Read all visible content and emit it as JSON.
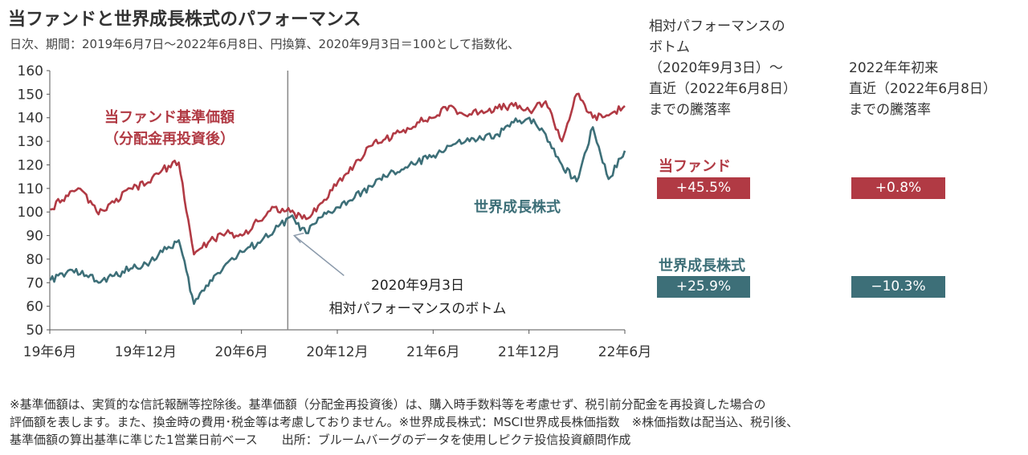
{
  "title": "当ファンドと世界成長株式のパフォーマンス",
  "subtitle": "日次、期間：2019年6月7日～2022年6月8日、円換算、2020年9月3日＝100として指数化、",
  "colors": {
    "fund": "#b13a44",
    "growth": "#3d6f78",
    "axis": "#555555"
  },
  "chart_data": {
    "type": "line",
    "ylim": [
      50,
      160
    ],
    "yticks": [
      "50",
      "60",
      "70",
      "80",
      "90",
      "100",
      "110",
      "120",
      "130",
      "140",
      "150",
      "160"
    ],
    "xticks": [
      "19年6月",
      "19年12月",
      "20年6月",
      "20年12月",
      "21年6月",
      "21年12月",
      "22年6月"
    ],
    "series": [
      {
        "name": "当ファンド基準価額（分配金再投資後）",
        "x": [
          "2019-06",
          "2019-07",
          "2019-08",
          "2019-09",
          "2019-10",
          "2019-11",
          "2019-12",
          "2020-01",
          "2020-02",
          "2020-03",
          "2020-04",
          "2020-05",
          "2020-06",
          "2020-07",
          "2020-08",
          "2020-09",
          "2020-10",
          "2020-11",
          "2020-12",
          "2021-01",
          "2021-02",
          "2021-03",
          "2021-04",
          "2021-05",
          "2021-06",
          "2021-07",
          "2021-08",
          "2021-09",
          "2021-10",
          "2021-11",
          "2021-12",
          "2022-01",
          "2022-02",
          "2022-03",
          "2022-04",
          "2022-05",
          "2022-06"
        ],
        "values": [
          101,
          107,
          109,
          99,
          104,
          110,
          112,
          118,
          121,
          82,
          88,
          91,
          90,
          96,
          102,
          100,
          97,
          104,
          113,
          120,
          128,
          131,
          134,
          138,
          140,
          145,
          141,
          143,
          144,
          145,
          143,
          147,
          130,
          150,
          140,
          141,
          145
        ]
      },
      {
        "name": "世界成長株式",
        "x": [
          "2019-06",
          "2019-07",
          "2019-08",
          "2019-09",
          "2019-10",
          "2019-11",
          "2019-12",
          "2020-01",
          "2020-02",
          "2020-03",
          "2020-04",
          "2020-05",
          "2020-06",
          "2020-07",
          "2020-08",
          "2020-09",
          "2020-10",
          "2020-11",
          "2020-12",
          "2021-01",
          "2021-02",
          "2021-03",
          "2021-04",
          "2021-05",
          "2021-06",
          "2021-07",
          "2021-08",
          "2021-09",
          "2021-10",
          "2021-11",
          "2021-12",
          "2022-01",
          "2022-02",
          "2022-03",
          "2022-04",
          "2022-05",
          "2022-06"
        ],
        "values": [
          71,
          74,
          75,
          70,
          73,
          76,
          78,
          83,
          88,
          61,
          71,
          78,
          83,
          87,
          92,
          98,
          91,
          98,
          102,
          106,
          111,
          115,
          118,
          121,
          124,
          128,
          130,
          131,
          133,
          138,
          140,
          133,
          120,
          113,
          136,
          114,
          126
        ]
      }
    ],
    "annotations": {
      "fund_label": [
        "当ファンド基準価額",
        "（分配金再投資後）"
      ],
      "growth_label": "世界成長株式",
      "bottom_date": "2020-09-03",
      "bottom_label": [
        "2020年9月3日",
        "相対パフォーマンスのボトム"
      ]
    }
  },
  "table": {
    "col1_header": [
      "相対パフォーマンスの",
      "ボトム",
      "（2020年9月3日）～",
      "直近（2022年6月8日）",
      "までの騰落率"
    ],
    "col2_header": [
      "2022年年初来",
      "直近（2022年6月8日）",
      "までの騰落率"
    ],
    "rows": [
      {
        "name": "当ファンド",
        "col1": "+45.5%",
        "col2": "+0.8%"
      },
      {
        "name": "世界成長株式",
        "col1": "+25.9%",
        "col2": "−10.3%"
      }
    ]
  },
  "notes": [
    "※基準価額は、実質的な信託報酬等控除後。基準価額（分配金再投資後）は、購入時手数料等を考慮せず、税引前分配金を再投資した場合の",
    "評価額を表します。また、換金時の費用･税金等は考慮しておりません。※世界成長株式：MSCI世界成長株価指数　※株価指数は配当込、税引後、",
    "基準価額の算出基準に準じた1営業日前ベース　　出所：ブルームバーグのデータを使用しピクテ投信投資顧問作成"
  ]
}
